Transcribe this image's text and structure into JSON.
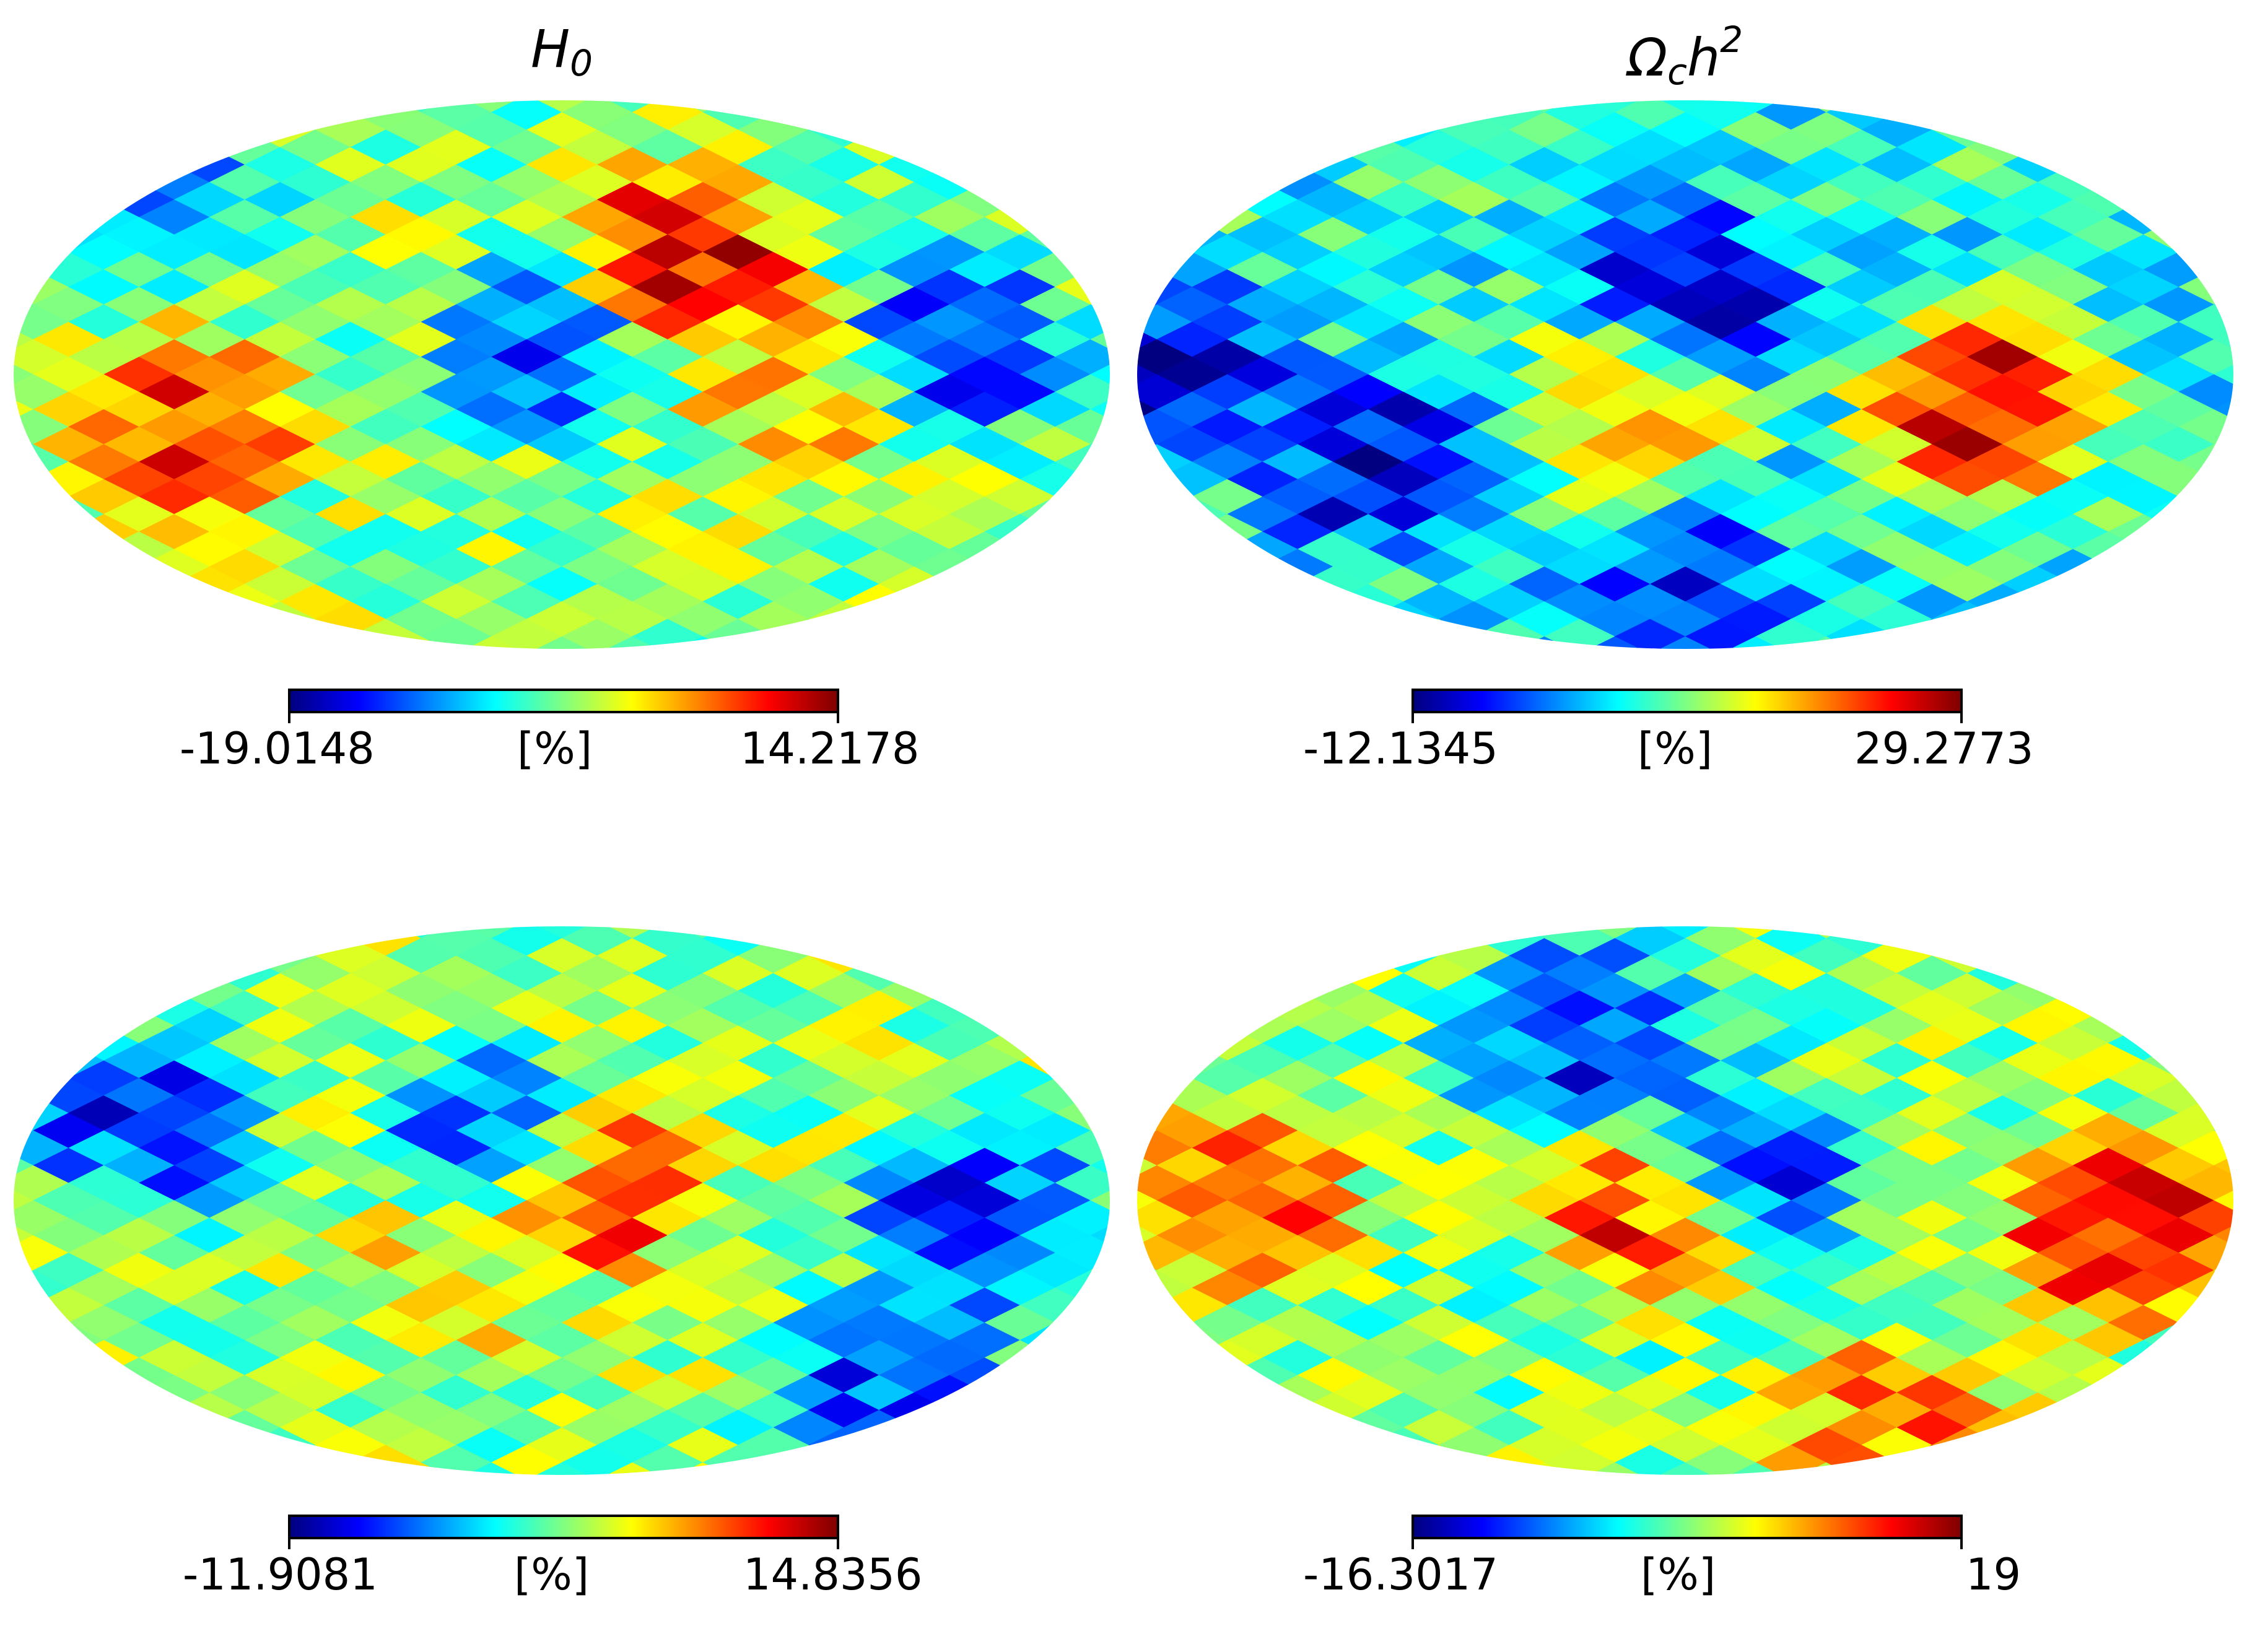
{
  "colormap": {
    "name": "jet",
    "stops": [
      "#000080",
      "#0000ff",
      "#0080ff",
      "#00ffff",
      "#80ff80",
      "#ffff00",
      "#ff8000",
      "#ff0000",
      "#800000"
    ]
  },
  "chart_data": [
    {
      "type": "heatmap",
      "projection": "mollweide",
      "title": "H₀",
      "unit_label": "[%]",
      "vmin": "-19.0148",
      "vmax": "14.2178",
      "grid": false
    },
    {
      "type": "heatmap",
      "projection": "mollweide",
      "title": "Ω_c h²",
      "unit_label": "[%]",
      "vmin": "-12.1345",
      "vmax": "29.2773",
      "grid": false
    },
    {
      "type": "heatmap",
      "projection": "mollweide",
      "title": "",
      "unit_label": "[%]",
      "vmin": "-11.9081",
      "vmax": "14.8356",
      "grid": false
    },
    {
      "type": "heatmap",
      "projection": "mollweide",
      "title": "",
      "unit_label": "[%]",
      "vmin": "-16.3017",
      "vmax": "19",
      "grid": false
    }
  ]
}
